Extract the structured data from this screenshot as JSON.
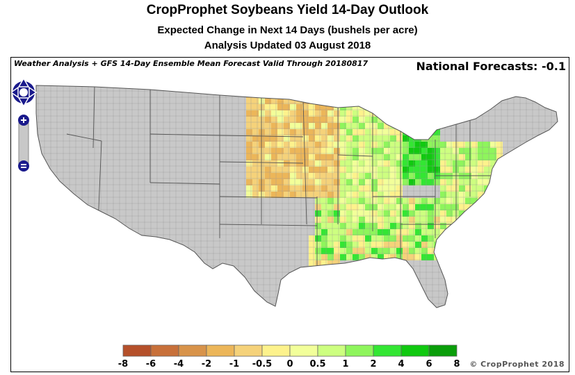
{
  "header": {
    "title": "CropProphet Soybeans Yield 14-Day Outlook",
    "subtitle": "Expected Change in Next 14 Days (bushels per acre)",
    "updated": "Analysis Updated 03 August 2018"
  },
  "map": {
    "caption": "Weather Analysis + GFS 14-Day Ensemble Mean Forecast Valid Through 20180817",
    "national_forecast": "National Forecasts: -0.1",
    "background_color": "#c8c8c8",
    "border_color": "#777777",
    "icons": [
      "pan-up-icon",
      "pan-down-icon",
      "pan-left-icon",
      "pan-right-icon",
      "zoom-in-icon",
      "zoom-out-icon"
    ]
  },
  "legend": {
    "ticks": [
      "-8",
      "-6",
      "-4",
      "-2",
      "-1",
      "-0.5",
      "0",
      "0.5",
      "1",
      "2",
      "4",
      "6",
      "8"
    ],
    "colors": [
      "#b5502a",
      "#c8703a",
      "#d8934a",
      "#ecb659",
      "#f5d27a",
      "#fdf28c",
      "#f2ff9a",
      "#cdff80",
      "#8ef55c",
      "#33e633",
      "#10c910",
      "#0a9e0a"
    ]
  },
  "footer": {
    "copyright": "© CropProphet 2018"
  }
}
